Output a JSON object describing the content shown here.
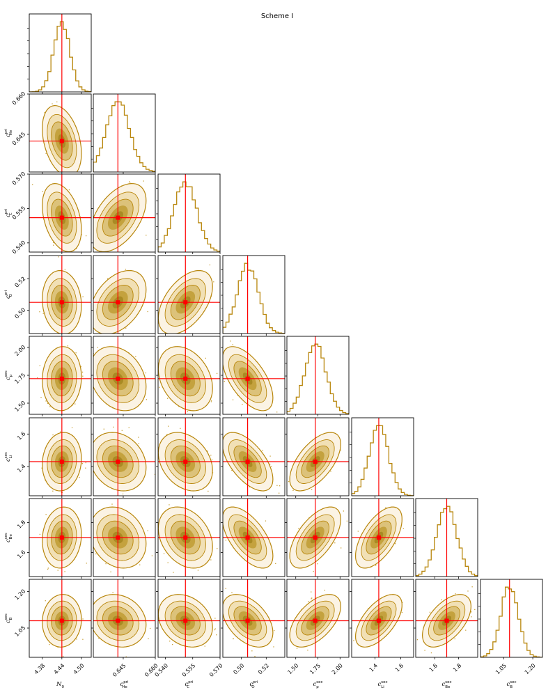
{
  "title": "Scheme I",
  "colors": {
    "hist": "#b8860b",
    "contour": "#b8860b",
    "scatter": "#c9a13a",
    "truth": "#ff0000",
    "fill_levels": [
      "#fbf3e4",
      "#f1e0b5",
      "#dcc27a",
      "#c4a23e",
      "#a98a24"
    ]
  },
  "chart_data": {
    "type": "corner",
    "parameters": [
      {
        "id": "N0",
        "label_main": "N",
        "label_sub": "0",
        "label_sup": "",
        "range": [
          4.34,
          4.53
        ],
        "ticks": [
          4.38,
          4.44,
          4.5
        ],
        "tick_labels": [
          "4.38",
          "4.44",
          "4.50"
        ],
        "truth": 4.44,
        "std": 0.025
      },
      {
        "id": "c_He_pri",
        "label_main": "c",
        "label_sub": "He",
        "label_sup": "pri",
        "range": [
          0.631,
          0.66
        ],
        "ticks": [
          0.645,
          0.66
        ],
        "tick_labels": [
          "0.645",
          "0.660"
        ],
        "y_ticks": [
          0.645,
          0.66
        ],
        "y_tick_labels": [
          "0.645",
          "0.660"
        ],
        "truth": 0.6425,
        "std": 0.0055
      },
      {
        "id": "c_C_pri",
        "label_main": "c",
        "label_sub": "C",
        "label_sup": "pri",
        "range": [
          0.536,
          0.57
        ],
        "ticks": [
          0.54,
          0.555,
          0.57
        ],
        "tick_labels": [
          "0.540",
          "0.555",
          "0.570"
        ],
        "truth": 0.551,
        "std": 0.0062
      },
      {
        "id": "c_O_pri",
        "label_main": "c",
        "label_sub": "O",
        "label_sup": "pri",
        "range": [
          0.485,
          0.535
        ],
        "ticks": [
          0.5,
          0.52
        ],
        "tick_labels": [
          "0.50",
          "0.52"
        ],
        "truth": 0.505,
        "std": 0.0085
      },
      {
        "id": "c_p_sec",
        "label_main": "c",
        "label_sub": "p",
        "label_sup": "sec",
        "range": [
          1.4,
          2.1
        ],
        "ticks": [
          1.5,
          1.75,
          2.0
        ],
        "tick_labels": [
          "1.50",
          "1.75",
          "2.00"
        ],
        "truth": 1.72,
        "std": 0.12
      },
      {
        "id": "c_Li_sec",
        "label_main": "c",
        "label_sub": "Li",
        "label_sup": "sec",
        "range": [
          1.22,
          1.7
        ],
        "ticks": [
          1.4,
          1.6
        ],
        "tick_labels": [
          "1.4",
          "1.6"
        ],
        "truth": 1.43,
        "std": 0.075
      },
      {
        "id": "c_Be_sec",
        "label_main": "c",
        "label_sub": "Be",
        "label_sup": "sec",
        "range": [
          1.44,
          1.96
        ],
        "ticks": [
          1.6,
          1.8
        ],
        "tick_labels": [
          "1.6",
          "1.8"
        ],
        "truth": 1.7,
        "std": 0.085
      },
      {
        "id": "c_B_sec",
        "label_main": "c",
        "label_sub": "B",
        "label_sup": "sec",
        "range": [
          0.93,
          1.25
        ],
        "ticks": [
          1.05,
          1.2
        ],
        "tick_labels": [
          "1.05",
          "1.20"
        ],
        "truth": 1.08,
        "std": 0.045
      }
    ],
    "correlations": [
      [
        1.0,
        -0.35,
        -0.35,
        -0.1,
        0.05,
        0.1,
        0.1,
        0.05
      ],
      [
        -0.35,
        1.0,
        0.5,
        0.4,
        -0.25,
        -0.2,
        -0.2,
        -0.15
      ],
      [
        -0.35,
        0.5,
        1.0,
        0.5,
        -0.3,
        -0.3,
        -0.3,
        -0.25
      ],
      [
        -0.1,
        0.4,
        0.5,
        1.0,
        -0.6,
        -0.6,
        -0.6,
        -0.45
      ],
      [
        0.05,
        -0.25,
        -0.3,
        -0.6,
        1.0,
        0.6,
        0.6,
        0.55
      ],
      [
        0.1,
        -0.2,
        -0.3,
        -0.6,
        0.6,
        1.0,
        0.6,
        0.6
      ],
      [
        0.1,
        -0.2,
        -0.3,
        -0.6,
        0.6,
        0.6,
        1.0,
        0.55
      ],
      [
        0.05,
        -0.15,
        -0.25,
        -0.45,
        0.55,
        0.6,
        0.55,
        1.0
      ]
    ],
    "grid": false,
    "legend": "none"
  }
}
